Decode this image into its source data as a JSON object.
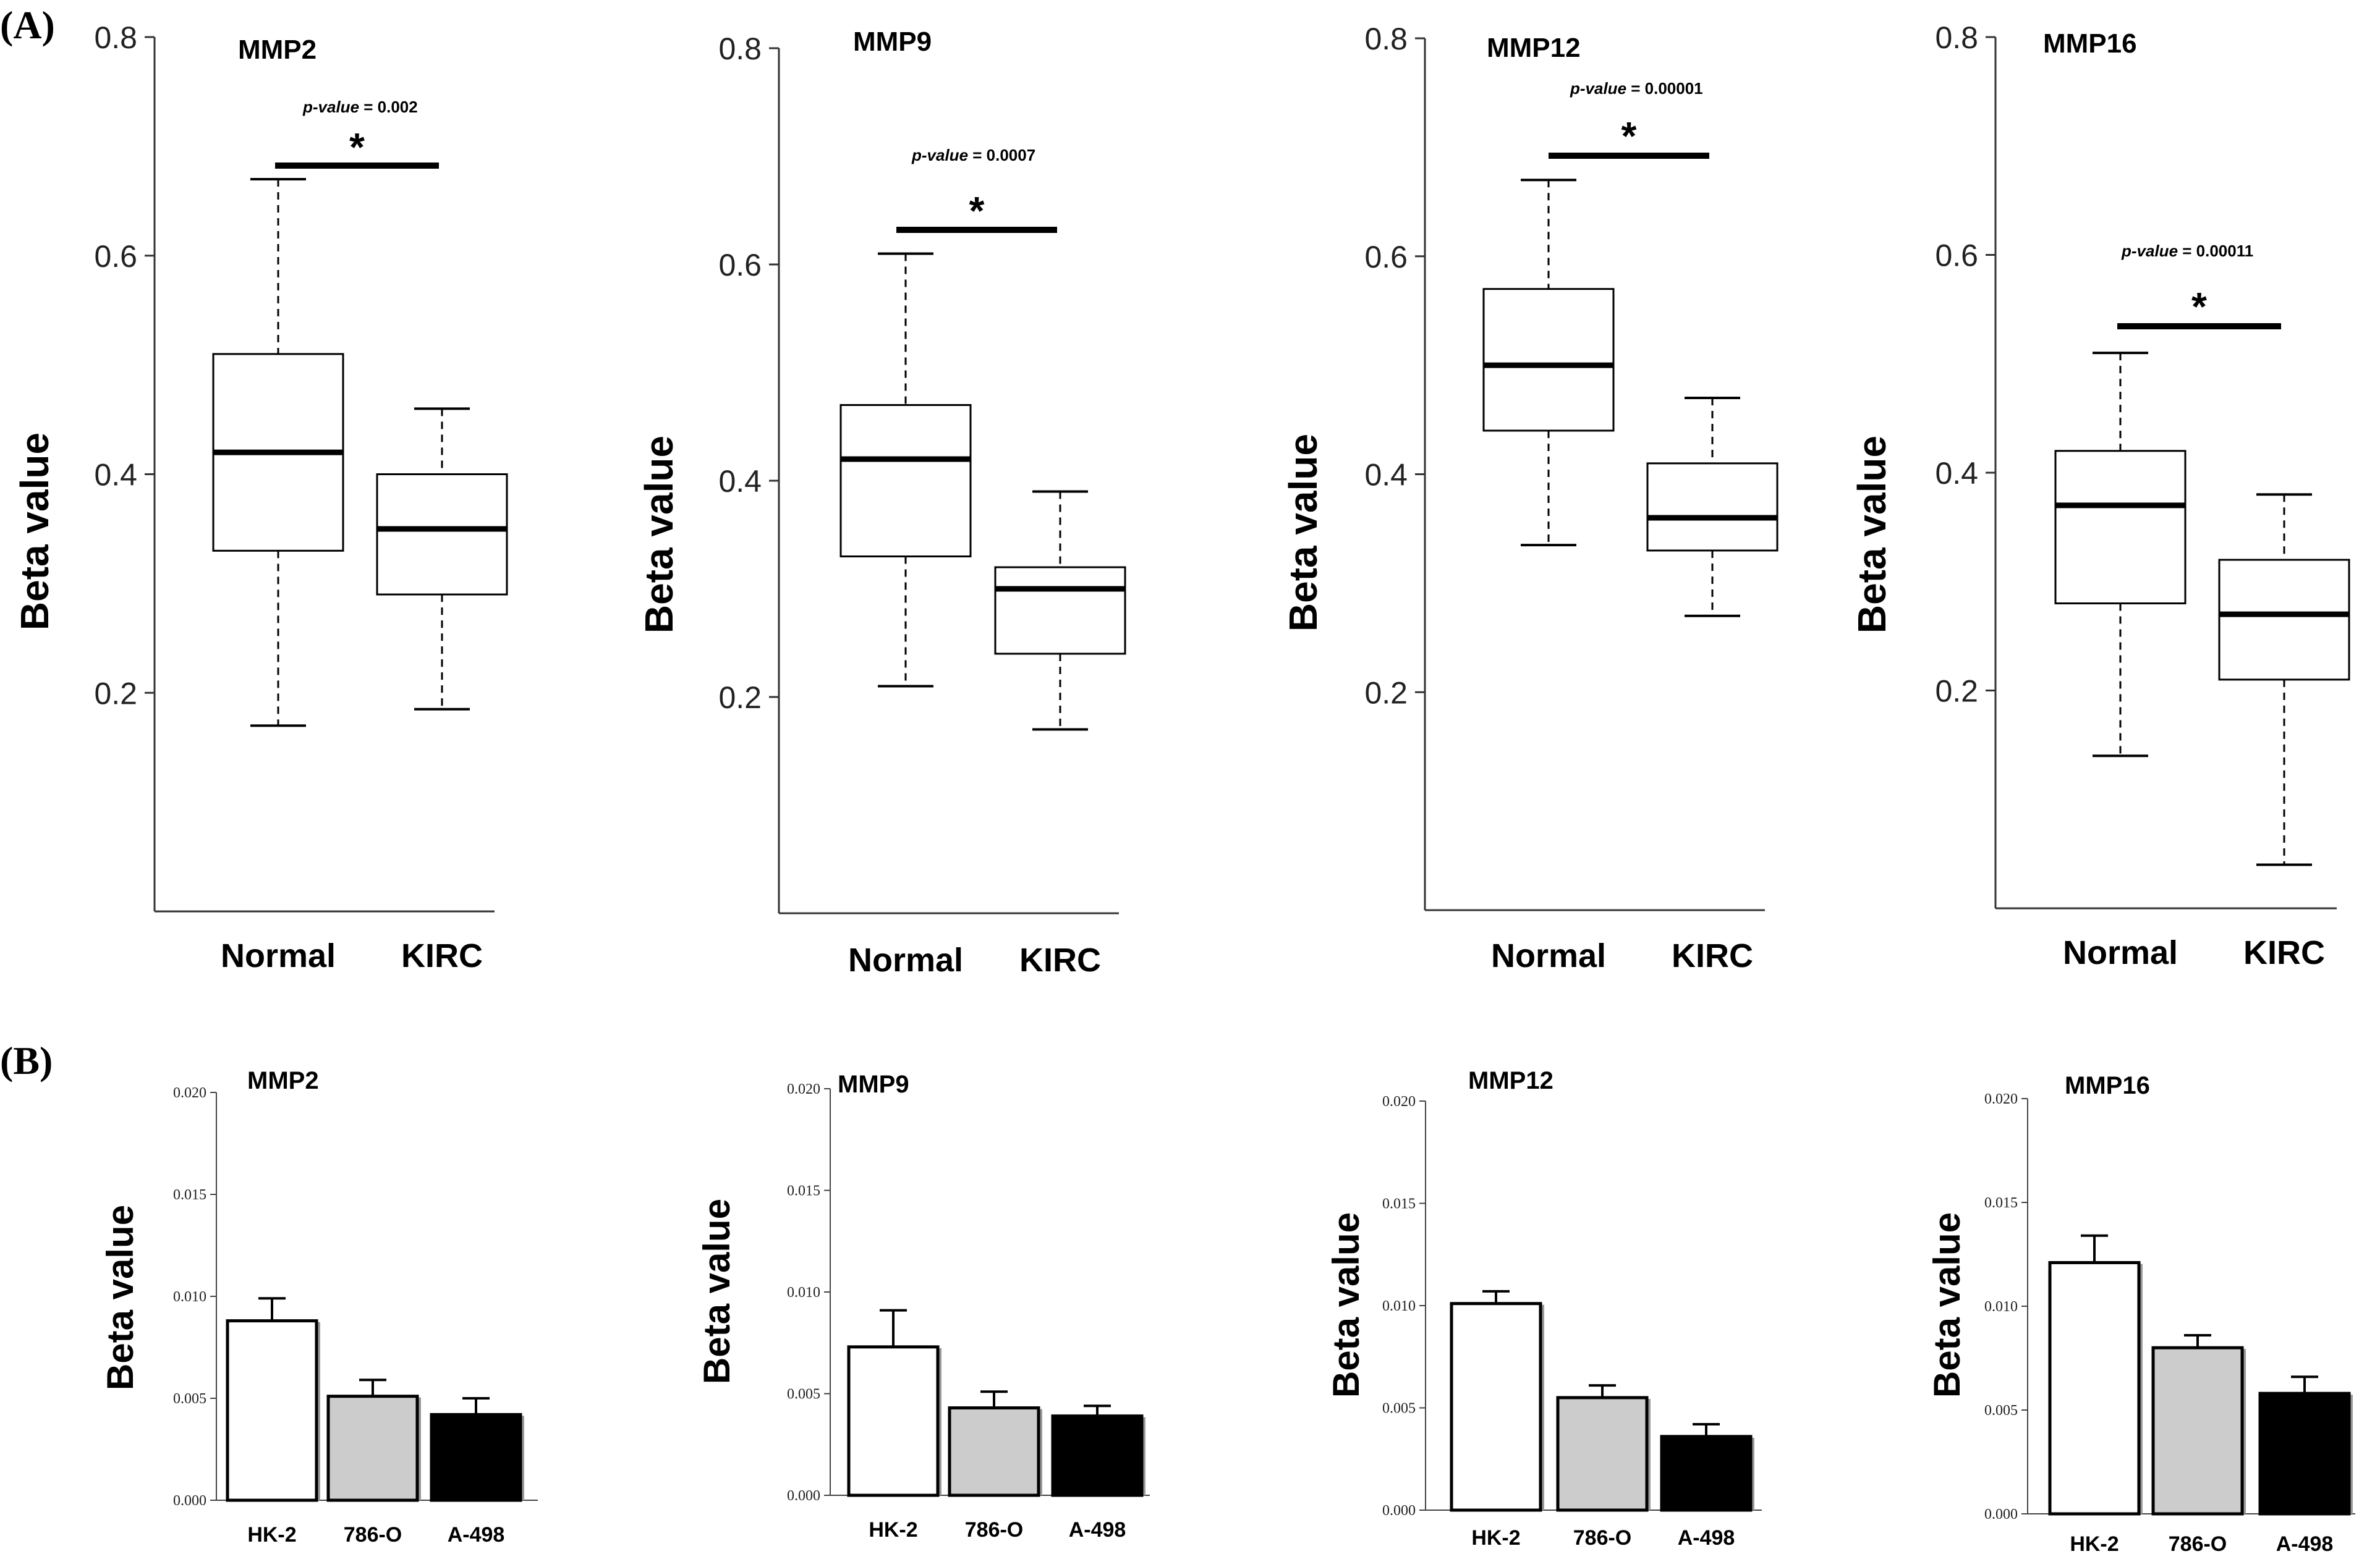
{
  "panels": [
    {
      "label": "(A)"
    },
    {
      "label": "(B)"
    }
  ],
  "chart_data": [
    {
      "type": "box",
      "panel": "A",
      "title": "MMP2",
      "ylabel": "Beta value",
      "ylim": [
        0.0,
        0.8
      ],
      "yticks": [
        "0.2",
        "0.4",
        "0.6",
        "0.8"
      ],
      "categories": [
        "Normal",
        "KIRC"
      ],
      "boxes": [
        {
          "min": 0.17,
          "q1": 0.33,
          "median": 0.42,
          "q3": 0.51,
          "max": 0.67
        },
        {
          "min": 0.185,
          "q1": 0.29,
          "median": 0.35,
          "q3": 0.4,
          "max": 0.46
        }
      ],
      "significance": {
        "pvalue_label": "p-value",
        "pvalue_text": " = 0.002",
        "marker": "*"
      }
    },
    {
      "type": "box",
      "panel": "A",
      "title": "MMP9",
      "ylabel": "Beta value",
      "ylim": [
        0.0,
        0.8
      ],
      "yticks": [
        "0.2",
        "0.4",
        "0.6",
        "0.8"
      ],
      "categories": [
        "Normal",
        "KIRC"
      ],
      "boxes": [
        {
          "min": 0.21,
          "q1": 0.33,
          "median": 0.42,
          "q3": 0.47,
          "max": 0.61
        },
        {
          "min": 0.17,
          "q1": 0.24,
          "median": 0.3,
          "q3": 0.32,
          "max": 0.39
        }
      ],
      "significance": {
        "pvalue_label": "p-value",
        "pvalue_text": " = 0.0007",
        "marker": "*"
      }
    },
    {
      "type": "box",
      "panel": "A",
      "title": "MMP12",
      "ylabel": "Beta value",
      "ylim": [
        0.0,
        0.8
      ],
      "yticks": [
        "0.2",
        "0.4",
        "0.6",
        "0.8"
      ],
      "categories": [
        "Normal",
        "KIRC"
      ],
      "boxes": [
        {
          "min": 0.335,
          "q1": 0.44,
          "median": 0.5,
          "q3": 0.57,
          "max": 0.67
        },
        {
          "min": 0.27,
          "q1": 0.33,
          "median": 0.36,
          "q3": 0.41,
          "max": 0.47
        }
      ],
      "significance": {
        "pvalue_label": "p-value",
        "pvalue_text": " = 0.00001",
        "marker": "*"
      }
    },
    {
      "type": "box",
      "panel": "A",
      "title": "MMP16",
      "ylabel": "Beta value",
      "ylim": [
        0.0,
        0.8
      ],
      "yticks": [
        "0.2",
        "0.4",
        "0.6",
        "0.8"
      ],
      "categories": [
        "Normal",
        "KIRC"
      ],
      "boxes": [
        {
          "min": 0.14,
          "q1": 0.28,
          "median": 0.37,
          "q3": 0.42,
          "max": 0.51
        },
        {
          "min": 0.04,
          "q1": 0.21,
          "median": 0.27,
          "q3": 0.32,
          "max": 0.38
        }
      ],
      "significance": {
        "pvalue_label": "p-value",
        "pvalue_text": " = 0.00011",
        "marker": "*"
      }
    },
    {
      "type": "bar",
      "panel": "B",
      "title": "MMP2",
      "ylabel": "Beta value",
      "ylim": [
        0.0,
        0.02
      ],
      "yticks": [
        "0.000",
        "0.005",
        "0.010",
        "0.015",
        "0.020"
      ],
      "categories": [
        "HK-2",
        "786-O",
        "A-498"
      ],
      "values": [
        0.0088,
        0.0051,
        0.0042
      ],
      "errors": [
        0.0011,
        0.0008,
        0.0008
      ],
      "colors": [
        "#ffffff",
        "#cccccc",
        "#000000"
      ]
    },
    {
      "type": "bar",
      "panel": "B",
      "title": "MMP9",
      "ylabel": "Beta value",
      "ylim": [
        0.0,
        0.02
      ],
      "yticks": [
        "0.000",
        "0.005",
        "0.010",
        "0.015",
        "0.020"
      ],
      "categories": [
        "HK-2",
        "786-O",
        "A-498"
      ],
      "values": [
        0.0073,
        0.0043,
        0.0039
      ],
      "errors": [
        0.0018,
        0.0008,
        0.0005
      ],
      "colors": [
        "#ffffff",
        "#cccccc",
        "#000000"
      ]
    },
    {
      "type": "bar",
      "panel": "B",
      "title": "MMP12",
      "ylabel": "Beta value",
      "ylim": [
        0.0,
        0.02
      ],
      "yticks": [
        "0.000",
        "0.005",
        "0.010",
        "0.015",
        "0.020"
      ],
      "categories": [
        "HK-2",
        "786-O",
        "A-498"
      ],
      "values": [
        0.0101,
        0.0055,
        0.0036
      ],
      "errors": [
        0.0006,
        0.0006,
        0.0006
      ],
      "colors": [
        "#ffffff",
        "#cccccc",
        "#000000"
      ]
    },
    {
      "type": "bar",
      "panel": "B",
      "title": "MMP16",
      "ylabel": "Beta value",
      "ylim": [
        0.0,
        0.02
      ],
      "yticks": [
        "0.000",
        "0.005",
        "0.010",
        "0.015",
        "0.020"
      ],
      "categories": [
        "HK-2",
        "786-O",
        "A-498"
      ],
      "values": [
        0.0121,
        0.008,
        0.0058
      ],
      "errors": [
        0.0013,
        0.0006,
        0.0008
      ],
      "colors": [
        "#ffffff",
        "#cccccc",
        "#000000"
      ]
    }
  ]
}
